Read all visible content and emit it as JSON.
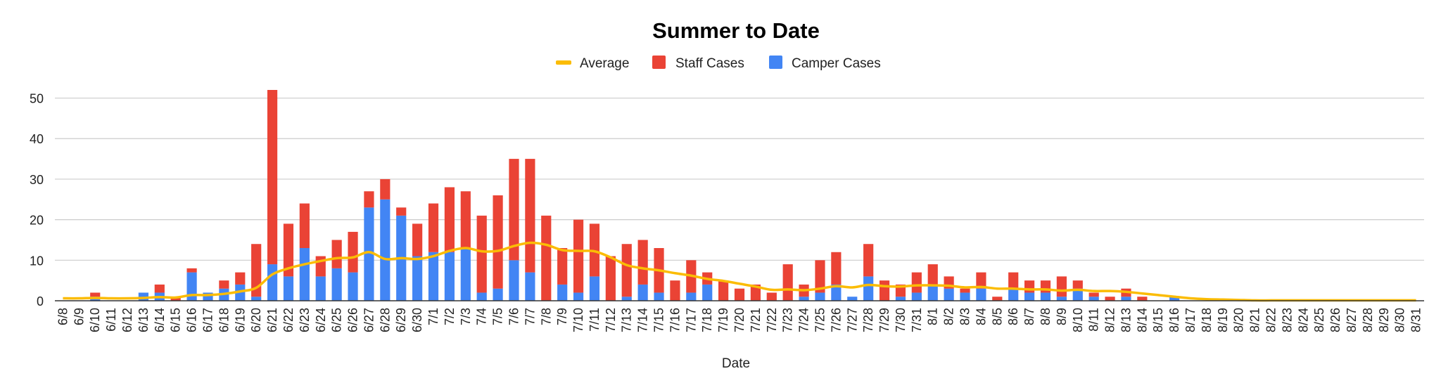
{
  "chart_data": {
    "type": "bar",
    "stacked": true,
    "title": "Summer to Date",
    "xlabel": "Date",
    "ylabel": "",
    "ylim": [
      0,
      52
    ],
    "yticks": [
      0,
      10,
      20,
      30,
      40,
      50
    ],
    "grid": true,
    "legend_position": "top",
    "categories": [
      "6/8",
      "6/9",
      "6/10",
      "6/11",
      "6/12",
      "6/13",
      "6/14",
      "6/15",
      "6/16",
      "6/17",
      "6/18",
      "6/19",
      "6/20",
      "6/21",
      "6/22",
      "6/23",
      "6/24",
      "6/25",
      "6/26",
      "6/27",
      "6/28",
      "6/29",
      "6/30",
      "7/1",
      "7/2",
      "7/3",
      "7/4",
      "7/5",
      "7/6",
      "7/7",
      "7/8",
      "7/9",
      "7/10",
      "7/11",
      "7/12",
      "7/13",
      "7/14",
      "7/15",
      "7/16",
      "7/17",
      "7/18",
      "7/19",
      "7/20",
      "7/21",
      "7/22",
      "7/23",
      "7/24",
      "7/25",
      "7/26",
      "7/27",
      "7/28",
      "7/29",
      "7/30",
      "7/31",
      "8/1",
      "8/2",
      "8/3",
      "8/4",
      "8/5",
      "8/6",
      "8/7",
      "8/8",
      "8/9",
      "8/10",
      "8/11",
      "8/12",
      "8/13",
      "8/14",
      "8/15",
      "8/16",
      "8/17",
      "8/18",
      "8/19",
      "8/20",
      "8/21",
      "8/22",
      "8/23",
      "8/24",
      "8/25",
      "8/26",
      "8/27",
      "8/28",
      "8/29",
      "8/30",
      "8/31"
    ],
    "series": [
      {
        "name": "Camper Cases",
        "kind": "bar",
        "color": "#4285F4",
        "values": [
          0,
          0,
          1,
          0,
          0,
          2,
          2,
          0,
          7,
          2,
          3,
          4,
          1,
          9,
          6,
          13,
          6,
          8,
          7,
          23,
          25,
          21,
          11,
          12,
          12,
          13,
          2,
          3,
          10,
          7,
          0,
          4,
          2,
          6,
          0,
          1,
          4,
          2,
          0,
          2,
          4,
          0,
          0,
          0,
          0,
          0,
          1,
          2,
          4,
          1,
          6,
          0,
          1,
          2,
          4,
          3,
          2,
          3,
          0,
          3,
          2,
          2,
          1,
          3,
          1,
          0,
          1,
          0,
          0,
          1,
          0,
          0,
          0,
          0,
          0,
          0,
          0,
          0,
          0,
          0,
          0,
          0,
          0,
          0,
          0
        ]
      },
      {
        "name": "Staff Cases",
        "kind": "bar",
        "color": "#EA4335",
        "values": [
          0,
          0,
          1,
          0,
          0,
          0,
          2,
          1,
          1,
          0,
          2,
          3,
          13,
          43,
          13,
          11,
          5,
          7,
          10,
          4,
          5,
          2,
          8,
          12,
          16,
          14,
          19,
          23,
          25,
          28,
          21,
          9,
          18,
          13,
          11,
          13,
          11,
          11,
          5,
          8,
          3,
          5,
          3,
          4,
          2,
          9,
          3,
          8,
          8,
          0,
          8,
          5,
          3,
          5,
          5,
          3,
          1,
          4,
          1,
          4,
          3,
          3,
          5,
          2,
          1,
          1,
          2,
          1,
          0,
          0,
          0,
          0,
          0,
          0,
          0,
          0,
          0,
          0,
          0,
          0,
          0,
          0,
          0,
          0,
          0
        ]
      },
      {
        "name": "Average",
        "kind": "line",
        "color": "#FBBC04",
        "values": [
          0.6,
          0.6,
          0.7,
          0.6,
          0.6,
          0.7,
          0.9,
          0.8,
          1.4,
          1.4,
          1.7,
          2.3,
          3.2,
          6.5,
          8.0,
          9.0,
          9.8,
          10.5,
          10.7,
          12.0,
          10.3,
          10.5,
          10.3,
          11.0,
          12.3,
          13.0,
          12.2,
          12.3,
          13.5,
          14.3,
          13.8,
          12.5,
          12.3,
          12.2,
          10.7,
          8.8,
          8.0,
          7.5,
          6.8,
          6.2,
          5.4,
          4.9,
          4.2,
          3.5,
          2.7,
          2.8,
          2.6,
          3.0,
          3.6,
          3.3,
          3.9,
          3.6,
          3.5,
          3.8,
          3.8,
          3.7,
          3.3,
          3.4,
          3.0,
          3.0,
          2.8,
          2.8,
          2.5,
          2.7,
          2.4,
          2.4,
          2.2,
          1.8,
          1.4,
          1.0,
          0.6,
          0.4,
          0.3,
          0.2,
          0.1,
          0.1,
          0.1,
          0.1,
          0.1,
          0.1,
          0.1,
          0.1,
          0.1,
          0.1,
          0.1
        ]
      }
    ]
  },
  "legend": [
    {
      "label": "Average",
      "color": "#FBBC04",
      "shape": "line"
    },
    {
      "label": "Staff Cases",
      "color": "#EA4335",
      "shape": "square"
    },
    {
      "label": "Camper Cases",
      "color": "#4285F4",
      "shape": "square"
    }
  ]
}
